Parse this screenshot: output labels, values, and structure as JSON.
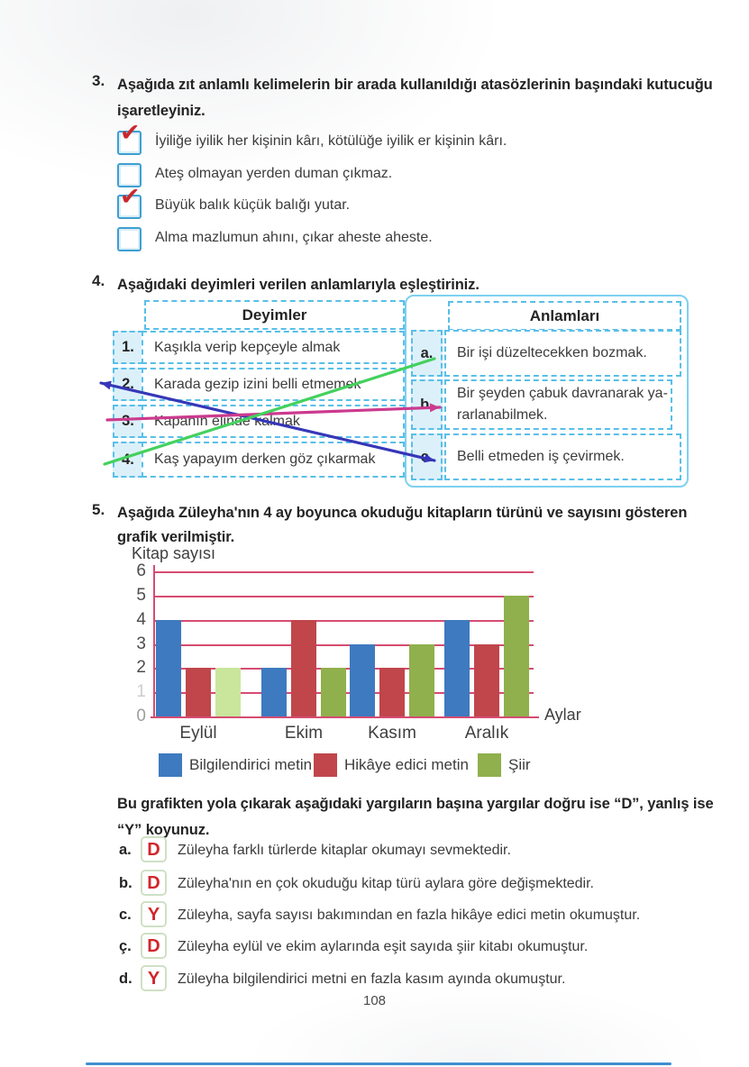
{
  "page": {
    "number": "108"
  },
  "q3": {
    "number": "3.",
    "prompt": "Aşağıda zıt anlamlı kelimelerin bir arada kullanıldığı atasözlerinin başındaki kutucuğu işaretleyiniz.",
    "items": [
      {
        "checked": true,
        "mark": "✔",
        "text": "İyiliğe iyilik her kişinin kârı, kötülüğe iyilik er kişinin kârı."
      },
      {
        "checked": false,
        "mark": "",
        "text": "Ateş olmayan yerden duman çıkmaz."
      },
      {
        "checked": true,
        "mark": "✔",
        "text": "Büyük balık küçük balığı yutar."
      },
      {
        "checked": false,
        "mark": "",
        "text": "Alma mazlumun ahını, çıkar aheste aheste."
      }
    ]
  },
  "q4": {
    "number": "4.",
    "prompt": "Aşağıdaki deyimleri verilen anlamlarıyla eşleştiriniz.",
    "left": {
      "header": "Deyimler",
      "rows": [
        {
          "num": "1.",
          "text": "Kaşıkla verip kepçeyle almak"
        },
        {
          "num": "2.",
          "text": "Karada gezip izini belli etmemek"
        },
        {
          "num": "3.",
          "text": "Kapanın elinde kalmak"
        },
        {
          "num": "4.",
          "text": "Kaş yapayım derken göz çıkarmak"
        }
      ]
    },
    "right": {
      "header": "Anlamları",
      "rows": [
        {
          "letter": "a.",
          "text": "Bir işi düzeltecekken bozmak."
        },
        {
          "letter": "b.",
          "text": "Bir şeyden çabuk davranarak ya-rarlanabilmek."
        },
        {
          "letter": "c.",
          "text": "Belli etmeden iş çevirmek."
        }
      ]
    },
    "connections": [
      {
        "from": "2",
        "to": "c",
        "color": "#3637b8",
        "arrow_start": true,
        "arrow_end": true
      },
      {
        "from": "3",
        "to": "b",
        "color": "#cc3a8e",
        "arrow_start": false,
        "arrow_end": true
      },
      {
        "from": "4",
        "to": "a",
        "color": "#44d15e",
        "arrow_start": false,
        "arrow_end": false
      }
    ]
  },
  "q5": {
    "number": "5.",
    "prompt": "Aşağıda Züleyha'nın 4 ay boyunca okuduğu kitapların türünü ve sayısını gösteren grafik verilmiştir."
  },
  "chart_data": {
    "type": "bar",
    "title": "",
    "ylabel": "Kitap sayısı",
    "xlabel": "Aylar",
    "categories": [
      "Eylül",
      "Ekim",
      "Kasım",
      "Aralık"
    ],
    "series": [
      {
        "name": "Bilgilendirici metin",
        "color": "#3e7abf",
        "values": [
          4,
          2,
          3,
          4
        ]
      },
      {
        "name": "Hikâye edici metin",
        "color": "#c0464b",
        "values": [
          2,
          4,
          2,
          3
        ]
      },
      {
        "name": "Şiir",
        "color": "#8fb04c",
        "values": [
          2,
          2,
          3,
          5
        ]
      }
    ],
    "bar_color_overrides": [
      {
        "series_index": 2,
        "category_index": 0,
        "color": "#c9e69c"
      }
    ],
    "ylim": [
      0,
      6
    ],
    "yticks": [
      0,
      1,
      2,
      3,
      4,
      5,
      6
    ],
    "grid": true,
    "grid_color": "#d64c72",
    "legend_position": "bottom"
  },
  "judgments": {
    "prompt": "Bu grafikten yola çıkarak aşağıdaki yargıların başına yargılar doğru ise “D”, yanlış ise “Y” koyunuz.",
    "items": [
      {
        "letter": "a.",
        "answer": "D",
        "text": "Züleyha farklı türlerde kitaplar okumayı sevmektedir."
      },
      {
        "letter": "b.",
        "answer": "D",
        "text": "Züleyha'nın en çok okuduğu kitap türü aylara göre değişmektedir."
      },
      {
        "letter": "c.",
        "answer": "Y",
        "text": "Züleyha, sayfa sayısı bakımından en fazla hikâye edici metin okumuştur."
      },
      {
        "letter": "ç.",
        "answer": "D",
        "text": "Züleyha eylül ve ekim aylarında eşit sayıda şiir kitabı okumuştur."
      },
      {
        "letter": "d.",
        "answer": "Y",
        "text": "Züleyha bilgilendirici metni en fazla kasım ayında okumuştur."
      }
    ]
  }
}
